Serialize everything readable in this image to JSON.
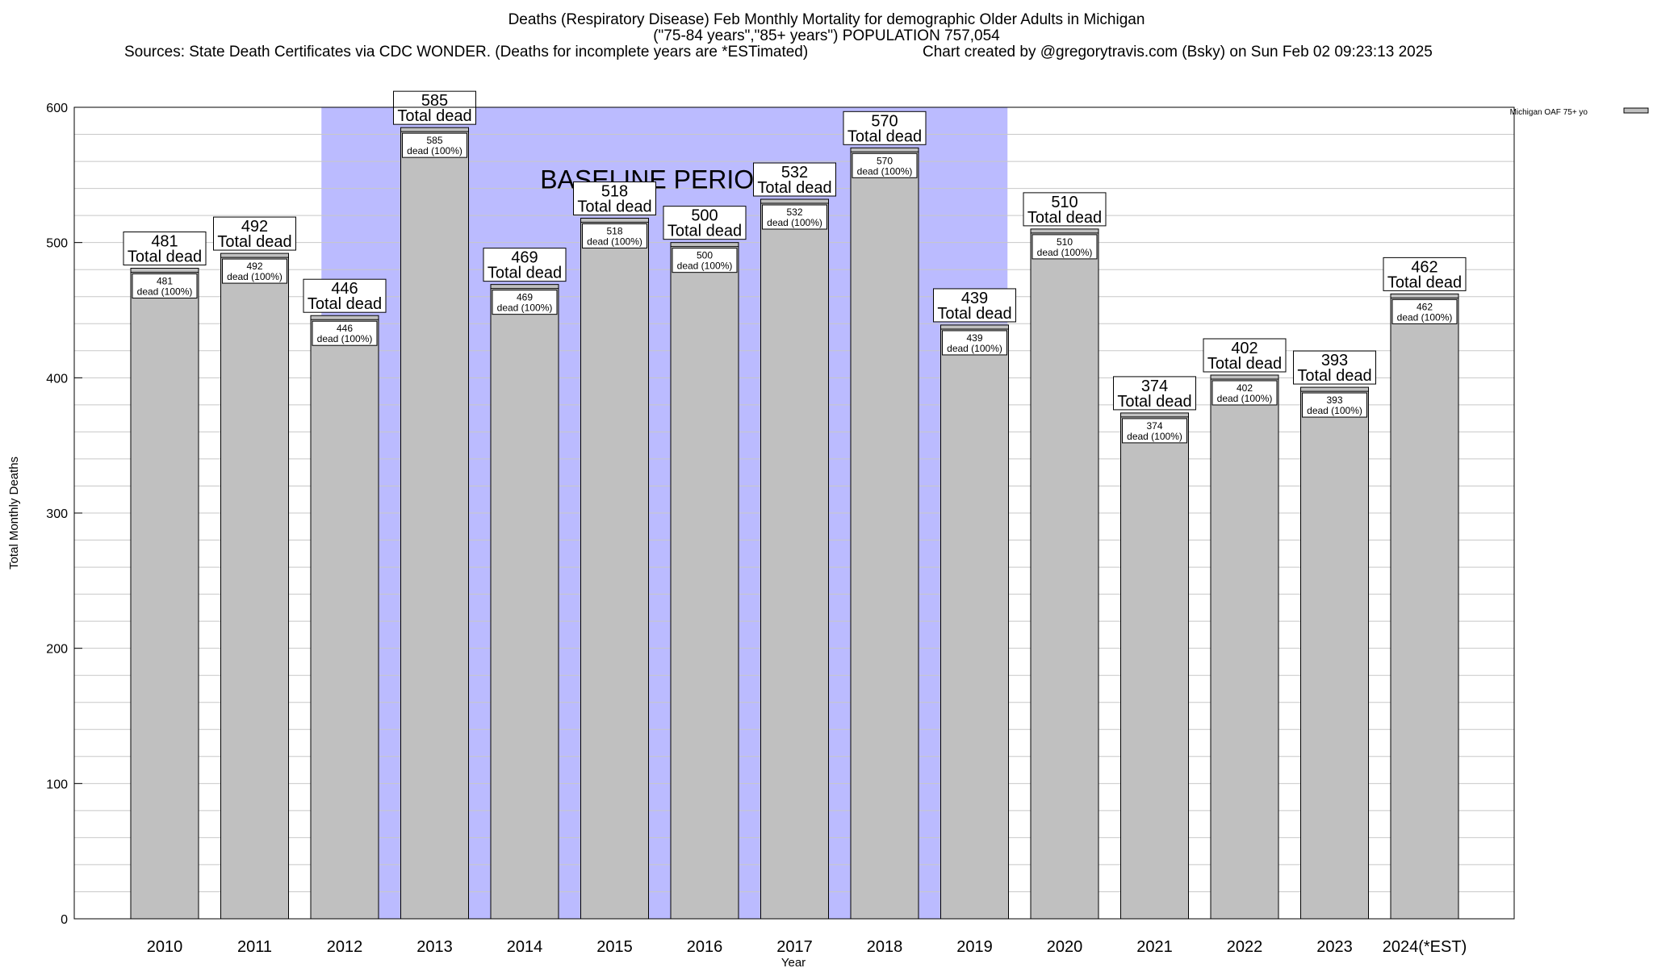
{
  "header": {
    "title_line1": "Deaths (Respiratory Disease) Feb Monthly Mortality for demographic Older Adults in Michigan",
    "title_line2": "(\"75-84 years\",\"85+ years\") POPULATION 757,054",
    "sources": "Sources: State Death Certificates via CDC WONDER. (Deaths for incomplete years are *ESTimated)",
    "credit": "Chart created by @gregorytravis.com (Bsky) on Sun Feb 02 09:23:13 2025"
  },
  "chart_data": {
    "type": "bar",
    "categories": [
      "2010",
      "2011",
      "2012",
      "2013",
      "2014",
      "2015",
      "2016",
      "2017",
      "2018",
      "2019",
      "2020",
      "2021",
      "2022",
      "2023",
      "2024(*EST)"
    ],
    "series": [
      {
        "name": "Michigan OAF 75+ yo",
        "values": [
          481,
          492,
          446,
          585,
          469,
          518,
          500,
          532,
          570,
          439,
          510,
          374,
          402,
          393,
          462
        ],
        "color": "#c0c0c0"
      }
    ],
    "top_label_suffix": "Total dead",
    "inner_label_suffix": "dead (100%)",
    "xlabel": "Year",
    "ylabel": "Total Monthly Deaths",
    "ylim": [
      0,
      600
    ],
    "yticks": [
      0,
      100,
      200,
      300,
      400,
      500,
      600
    ],
    "grid": true,
    "legend_placement": "top-right",
    "baseline": {
      "label": "BASELINE PERIOD",
      "start": "2012",
      "end": "2019",
      "color": "#bbbbff"
    }
  }
}
